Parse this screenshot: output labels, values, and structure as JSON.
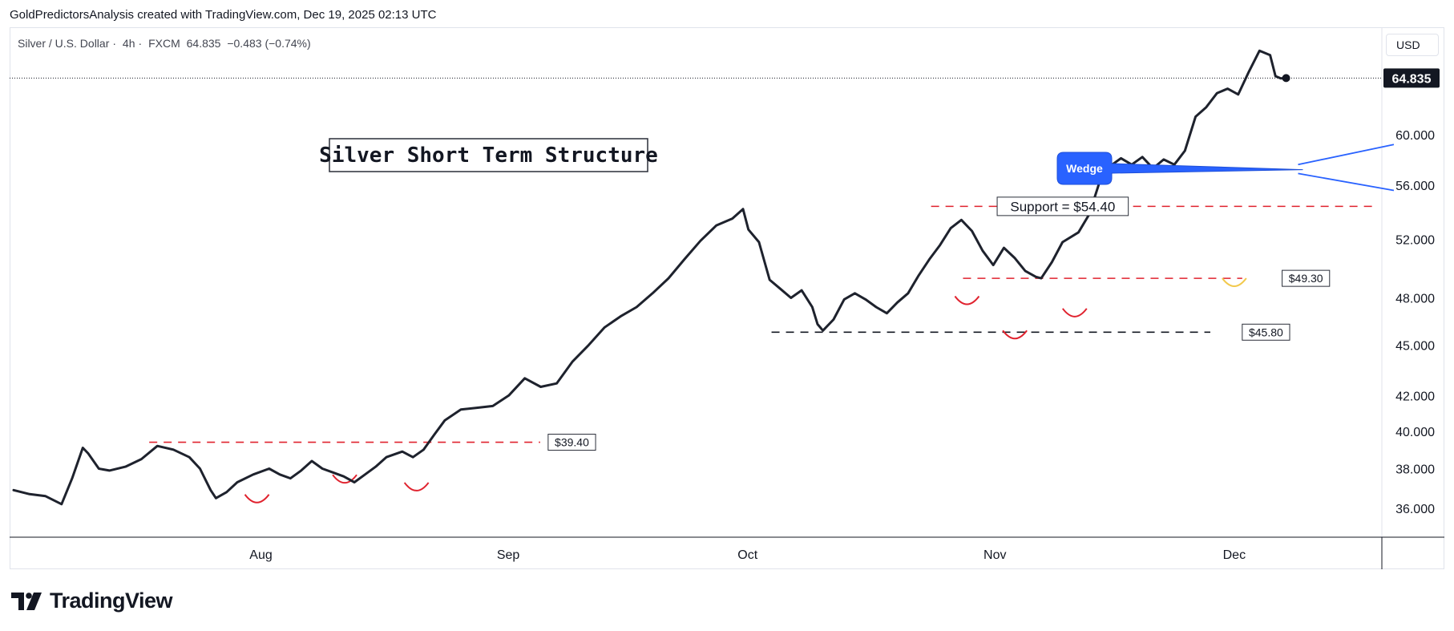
{
  "header": {
    "attribution": "GoldPredictorsAnalysis created with TradingView.com, Dec 19, 2025 02:13 UTC"
  },
  "symbol": {
    "name": "Silver / U.S. Dollar",
    "interval": "4h",
    "exchange": "FXCM",
    "separator": "·",
    "last": "64.835",
    "change": "−0.483 (−0.74%)"
  },
  "currency_button": "USD",
  "brand": {
    "name": "TradingView"
  },
  "colors": {
    "price_line": "#1e222d",
    "support_red": "#e0222e",
    "support_black": "#131722",
    "wedge_blue": "#2962ff",
    "grid": "#e0e3eb"
  },
  "chart_data": {
    "type": "line",
    "title": "Silver Short Term Structure",
    "scale": "log",
    "ylim": [
      34.6,
      69.5
    ],
    "x_range_days": [
      -0.5,
      171.5
    ],
    "price_points": [
      [
        0,
        36.9
      ],
      [
        3,
        36.7
      ],
      [
        6,
        36.6
      ],
      [
        9,
        36.2
      ],
      [
        11,
        37.5
      ],
      [
        13,
        39.1
      ],
      [
        14,
        38.8
      ],
      [
        16,
        38.0
      ],
      [
        18,
        37.9
      ],
      [
        21,
        38.1
      ],
      [
        24,
        38.5
      ],
      [
        27,
        39.2
      ],
      [
        30,
        39.0
      ],
      [
        33,
        38.6
      ],
      [
        35,
        38.0
      ],
      [
        37,
        36.9
      ],
      [
        38,
        36.5
      ],
      [
        40,
        36.8
      ],
      [
        42,
        37.3
      ],
      [
        45,
        37.7
      ],
      [
        48,
        38.0
      ],
      [
        50,
        37.7
      ],
      [
        52,
        37.5
      ],
      [
        54,
        37.9
      ],
      [
        56,
        38.4
      ],
      [
        58,
        38.0
      ],
      [
        60,
        37.8
      ],
      [
        62,
        37.6
      ],
      [
        64,
        37.3
      ],
      [
        66,
        37.7
      ],
      [
        68,
        38.1
      ],
      [
        70,
        38.6
      ],
      [
        73,
        38.9
      ],
      [
        75,
        38.6
      ],
      [
        77,
        39.0
      ],
      [
        79,
        39.8
      ],
      [
        81,
        40.6
      ],
      [
        84,
        41.2
      ],
      [
        87,
        41.3
      ],
      [
        90,
        41.4
      ],
      [
        93,
        42.0
      ],
      [
        96,
        43.0
      ],
      [
        99,
        42.5
      ],
      [
        102,
        42.7
      ],
      [
        105,
        44.0
      ],
      [
        108,
        45.0
      ],
      [
        111,
        46.1
      ],
      [
        114,
        46.8
      ],
      [
        117,
        47.4
      ],
      [
        120,
        48.3
      ],
      [
        123,
        49.3
      ],
      [
        126,
        50.6
      ],
      [
        129,
        51.9
      ],
      [
        132,
        53.0
      ],
      [
        135,
        53.5
      ],
      [
        137,
        54.2
      ],
      [
        138,
        52.7
      ],
      [
        140,
        51.8
      ],
      [
        142,
        49.2
      ],
      [
        144,
        48.6
      ],
      [
        146,
        48.0
      ],
      [
        148,
        48.5
      ],
      [
        150,
        47.4
      ],
      [
        151,
        46.3
      ],
      [
        152,
        45.9
      ],
      [
        154,
        46.6
      ],
      [
        156,
        47.9
      ],
      [
        158,
        48.3
      ],
      [
        160,
        47.9
      ],
      [
        162,
        47.4
      ],
      [
        164,
        47.0
      ],
      [
        166,
        47.7
      ],
      [
        168,
        48.3
      ],
      [
        170,
        49.5
      ],
      [
        172,
        50.6
      ],
      [
        174,
        51.6
      ],
      [
        176,
        52.8
      ],
      [
        178,
        53.4
      ],
      [
        180,
        52.6
      ],
      [
        182,
        51.2
      ],
      [
        184,
        50.2
      ],
      [
        186,
        51.4
      ],
      [
        188,
        50.7
      ],
      [
        190,
        49.8
      ],
      [
        192,
        49.4
      ],
      [
        193,
        49.3
      ],
      [
        195,
        50.4
      ],
      [
        197,
        51.8
      ],
      [
        200,
        52.5
      ],
      [
        202,
        53.8
      ],
      [
        204,
        56.3
      ],
      [
        206,
        57.5
      ],
      [
        208,
        58.1
      ],
      [
        210,
        57.6
      ],
      [
        212,
        58.2
      ],
      [
        214,
        57.3
      ],
      [
        216,
        58.0
      ],
      [
        218,
        57.6
      ],
      [
        220,
        58.7
      ],
      [
        222,
        61.5
      ],
      [
        224,
        62.3
      ],
      [
        226,
        63.5
      ],
      [
        228,
        63.9
      ],
      [
        230,
        63.4
      ],
      [
        232,
        65.4
      ],
      [
        234,
        67.3
      ],
      [
        236,
        66.9
      ],
      [
        237,
        65.0
      ],
      [
        238,
        64.8
      ],
      [
        239,
        64.835
      ]
    ],
    "price_scale_labels": [
      {
        "label": "60.000",
        "value": 60.0
      },
      {
        "label": "56.000",
        "value": 56.0
      },
      {
        "label": "52.000",
        "value": 52.0
      },
      {
        "label": "48.000",
        "value": 48.0
      },
      {
        "label": "45.000",
        "value": 45.0
      },
      {
        "label": "42.000",
        "value": 42.0
      },
      {
        "label": "40.000",
        "value": 40.0
      },
      {
        "label": "38.000",
        "value": 38.0
      },
      {
        "label": "36.000",
        "value": 36.0
      }
    ],
    "last_price_label": "64.835",
    "last_price_value": 64.835,
    "time_labels": [
      {
        "label": "Aug",
        "day": 31
      },
      {
        "label": "Sep",
        "day": 62
      },
      {
        "label": "Oct",
        "day": 92
      },
      {
        "label": "Nov",
        "day": 123
      },
      {
        "label": "Dec",
        "day": 153
      }
    ],
    "support_lines": [
      {
        "name": "support-line-39-40",
        "value": 39.4,
        "from_day": 17,
        "to_day": 66,
        "style": "red"
      },
      {
        "name": "support-line-54-40",
        "value": 54.4,
        "from_day": 115,
        "to_day": 171,
        "style": "red"
      },
      {
        "name": "support-line-49-30",
        "value": 49.3,
        "from_day": 119,
        "to_day": 154,
        "style": "red"
      },
      {
        "name": "support-line-45-80",
        "value": 45.8,
        "from_day": 95,
        "to_day": 150,
        "style": "black"
      }
    ],
    "annotations": [
      {
        "name": "label-39-40",
        "text": "$39.40",
        "day": 67,
        "value": 39.4
      },
      {
        "name": "label-support-54-40",
        "text": "Support = $54.40",
        "day": 131.5,
        "value": 54.4
      },
      {
        "name": "label-49-30",
        "text": "$49.30",
        "day": 159,
        "value": 49.3
      },
      {
        "name": "label-45-80",
        "text": "$45.80",
        "day": 154,
        "value": 45.8
      }
    ],
    "wedge": {
      "label": "Wedge",
      "upper": [
        [
          161,
          57.6
        ],
        [
          173,
          59.2
        ]
      ],
      "lower": [
        [
          161,
          56.9
        ],
        [
          173,
          55.6
        ]
      ]
    },
    "bottom_arcs": [
      {
        "name": "arc-aug-1",
        "day": 30.5,
        "value": 36.6
      },
      {
        "name": "arc-aug-2",
        "day": 41.5,
        "value": 37.6
      },
      {
        "name": "arc-aug-3",
        "day": 50.5,
        "value": 37.2
      },
      {
        "name": "arc-oct-1",
        "day": 119.5,
        "value": 48.0
      },
      {
        "name": "arc-oct-2",
        "day": 125.5,
        "value": 45.8
      },
      {
        "name": "arc-nov-1",
        "day": 133,
        "value": 47.2
      },
      {
        "name": "arc-nov-2",
        "day": 153,
        "value": 49.2
      }
    ]
  }
}
